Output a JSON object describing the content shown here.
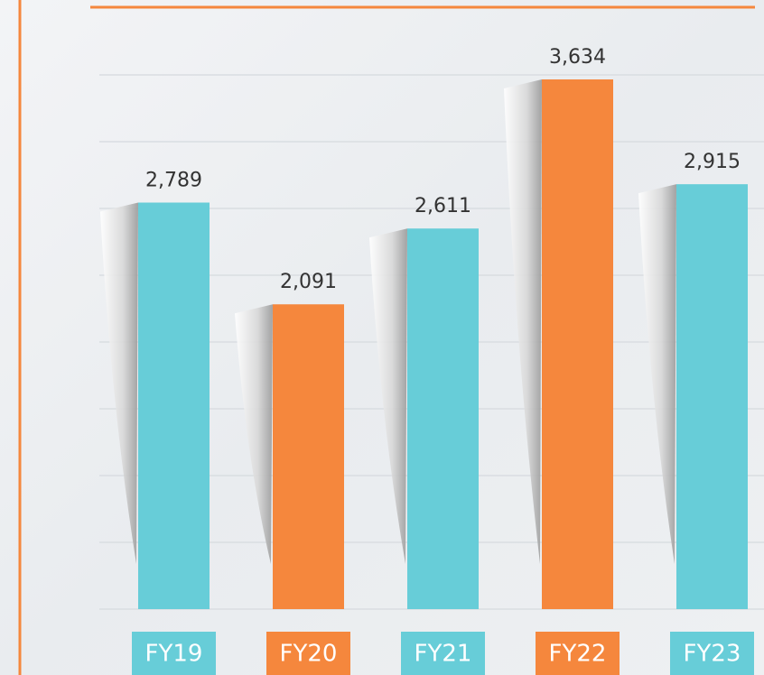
{
  "chart_data": {
    "type": "bar",
    "categories": [
      "FY19",
      "FY20",
      "FY21",
      "FY22",
      "FY23"
    ],
    "values": [
      2789,
      2091,
      2611,
      3634,
      2915
    ],
    "value_labels": [
      "2,789",
      "2,091",
      "2,611",
      "3,634",
      "2,915"
    ],
    "colors": [
      "#67cdd8",
      "#f5873d",
      "#67cdd8",
      "#f5873d",
      "#67cdd8"
    ]
  }
}
